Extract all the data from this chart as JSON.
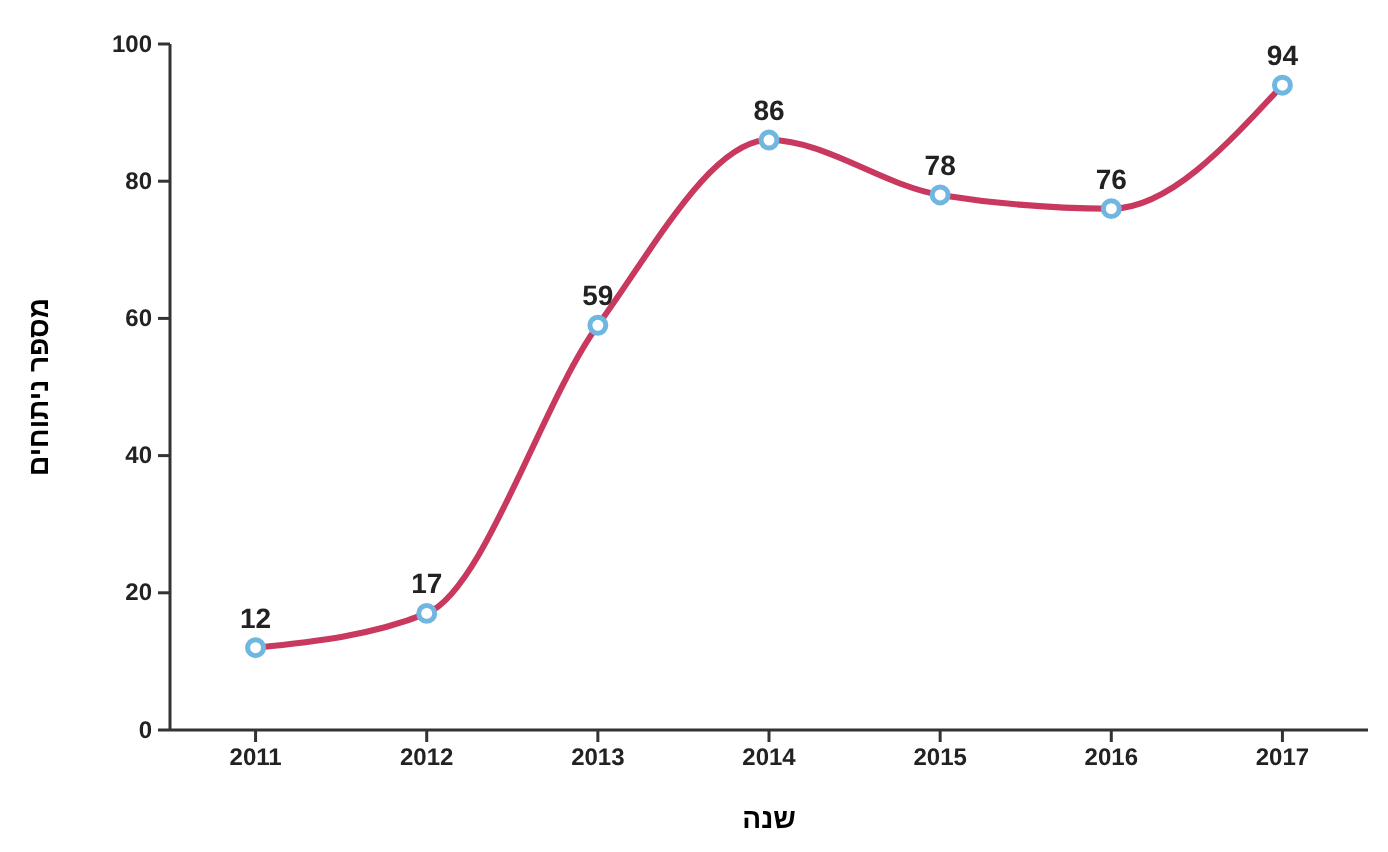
{
  "chart_data": {
    "type": "line",
    "xlabel": "שנה",
    "ylabel": "מספר ניתוחים",
    "categories": [
      "2011",
      "2012",
      "2013",
      "2014",
      "2015",
      "2016",
      "2017"
    ],
    "series": [
      {
        "color": "#c8385f",
        "values": [
          12,
          17,
          59,
          86,
          78,
          76,
          94
        ]
      }
    ],
    "ylim": [
      0,
      100
    ],
    "yticks": [
      0,
      20,
      40,
      60,
      80,
      100
    ],
    "grid": false,
    "marker": "circle",
    "data_labels": true
  }
}
